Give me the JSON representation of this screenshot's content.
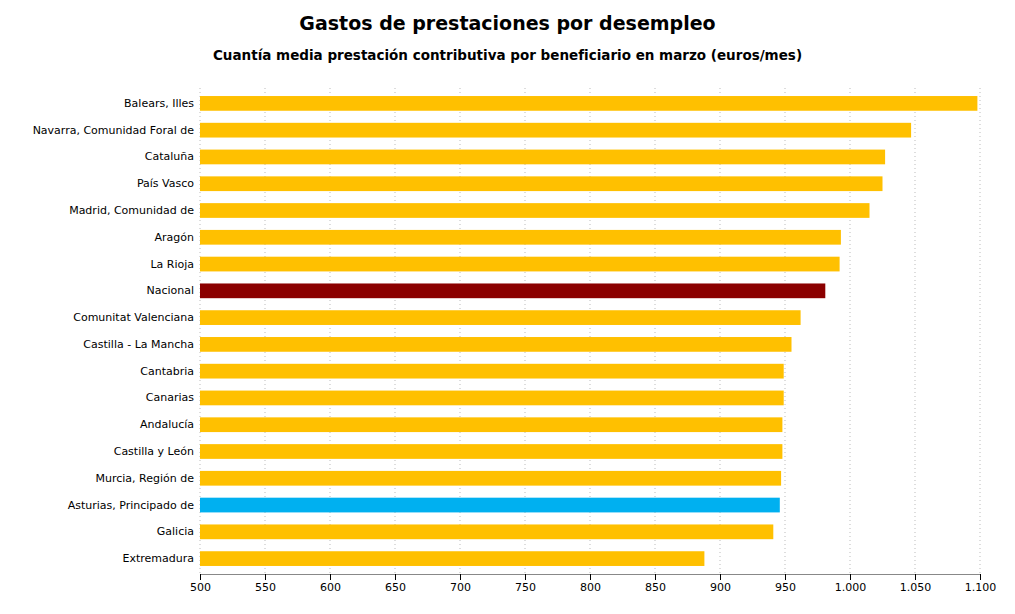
{
  "chart_data": {
    "type": "bar",
    "orientation": "horizontal",
    "title": "Gastos de prestaciones por desempleo",
    "subtitle": "Cuantía media prestación contributiva por beneficiario en marzo (euros/mes)",
    "categories": [
      "Extremadura",
      "Galicia",
      "Asturias, Principado de",
      "Murcia, Región de",
      "Castilla y León",
      "Andalucía",
      "Canarias",
      "Cantabria",
      "Castilla - La Mancha",
      "Comunitat Valenciana",
      "Nacional",
      "La Rioja",
      "Aragón",
      "Madrid, Comunidad de",
      "País Vasco",
      "Cataluña",
      "Navarra, Comunidad Foral de",
      "Balears, Illes"
    ],
    "values": [
      888,
      941,
      946,
      947,
      948,
      948,
      949,
      949,
      955,
      962,
      981,
      992,
      993,
      1015,
      1025,
      1027,
      1047,
      1098
    ],
    "colors": [
      "#FFC000",
      "#FFC000",
      "#00B0F0",
      "#FFC000",
      "#FFC000",
      "#FFC000",
      "#FFC000",
      "#FFC000",
      "#FFC000",
      "#FFC000",
      "#8B0000",
      "#FFC000",
      "#FFC000",
      "#FFC000",
      "#FFC000",
      "#FFC000",
      "#FFC000",
      "#FFC000"
    ],
    "xlim": [
      500,
      1100
    ],
    "xticks": [
      500,
      550,
      600,
      650,
      700,
      750,
      800,
      850,
      900,
      950,
      {
        "value": 1000,
        "label": "1.000"
      },
      {
        "value": 1050,
        "label": "1.050"
      },
      {
        "value": 1100,
        "label": "1.100"
      }
    ],
    "grid": true
  }
}
